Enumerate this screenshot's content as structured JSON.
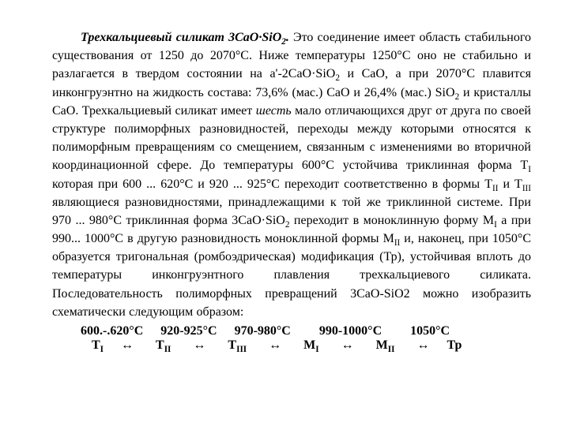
{
  "doc": {
    "title": "Трехкальциевый силикат 3CaO·SiO",
    "title_sub": "2",
    "title_period": ".",
    "body_parts": [
      " Это соединение имеет область стабильного существования от 1250 до 2070°С. Ниже температуры 1250°С оно не стабильно и разлагается в твердом состоянии на a'-2CaO·SiO",
      " и CaO, а при 2070°С плавится инконгруэнтно на жидкость состава: 73,6% (мас.) CaO и 26,4% (мас.) SiO",
      " и кристаллы CaO. Трехкальциевый силикат имеет ",
      " мало отличающихся друг от друга по своей структуре полиморфных разновидностей, переходы между которыми относятся к полиморфным превращениям со смещением, связанным с изменениями во вторичной координационной сфере. До температуры 600°С устойчива триклинная форма Т",
      " которая при 600 ... 620°С и 920 ... 925°С переходит соответственно в формы Т",
      " и Т",
      " являющиеся разновидностями, принадлежащими к той же триклинной системе. При 970 ... 980°С триклинная форма 3CaO·SiO",
      " переходит в моноклинную форму M",
      " а при 990... 1000°С в другую разновидность моноклинной формы М",
      " и, наконец, при 1050°С образуется тригональная (ромбоэдрическая) модификация (Тр), устойчивая вплоть до температуры инконгруэнтного плавления трехкальциевого силиката. Последовательность полиморфных превращений 3CaO-SiO2 можно изобразить схематически следующим образом:"
    ],
    "subs": [
      "2",
      "2",
      "I",
      "II",
      "III",
      "2",
      "I",
      "II"
    ],
    "italic_word": "шесть"
  },
  "seq": {
    "temps": [
      "600.-.620°С",
      "920-925°С",
      "970-980°С",
      "990-1000°С",
      "1050°С"
    ],
    "phases": [
      "Т",
      "Т",
      "Т",
      "M",
      "М",
      "Тр"
    ],
    "phase_subs": [
      "I",
      "II",
      "III",
      "I",
      "II",
      ""
    ],
    "arrow": "↔"
  }
}
